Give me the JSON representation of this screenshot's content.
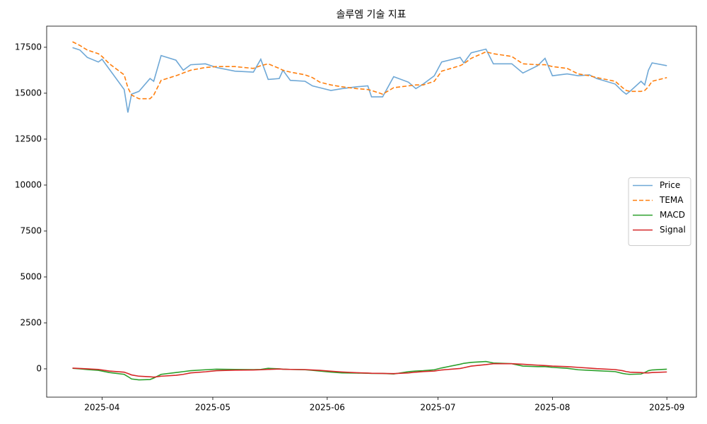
{
  "chart_data": {
    "type": "line",
    "title": "솔루엠 기술 지표",
    "x": [
      "2025-03-24",
      "2025-03-26",
      "2025-03-28",
      "2025-03-31",
      "2025-04-01",
      "2025-04-03",
      "2025-04-07",
      "2025-04-08",
      "2025-04-09",
      "2025-04-11",
      "2025-04-14",
      "2025-04-15",
      "2025-04-17",
      "2025-04-21",
      "2025-04-23",
      "2025-04-25",
      "2025-04-29",
      "2025-05-02",
      "2025-05-07",
      "2025-05-12",
      "2025-05-14",
      "2025-05-16",
      "2025-05-19",
      "2025-05-20",
      "2025-05-22",
      "2025-05-26",
      "2025-05-28",
      "2025-05-30",
      "2025-06-02",
      "2025-06-05",
      "2025-06-09",
      "2025-06-12",
      "2025-06-13",
      "2025-06-16",
      "2025-06-19",
      "2025-06-23",
      "2025-06-25",
      "2025-06-27",
      "2025-06-30",
      "2025-07-02",
      "2025-07-07",
      "2025-07-08",
      "2025-07-10",
      "2025-07-14",
      "2025-07-16",
      "2025-07-21",
      "2025-07-24",
      "2025-07-28",
      "2025-07-30",
      "2025-08-01",
      "2025-08-05",
      "2025-08-08",
      "2025-08-11",
      "2025-08-13",
      "2025-08-18",
      "2025-08-20",
      "2025-08-21",
      "2025-08-22",
      "2025-08-25",
      "2025-08-26",
      "2025-08-27",
      "2025-08-28",
      "2025-09-01"
    ],
    "series": [
      {
        "name": "Price",
        "color": "#6fa8d6",
        "linestyle": "solid",
        "values": [
          17480,
          17350,
          16950,
          16700,
          16850,
          16300,
          15200,
          13950,
          14950,
          15100,
          15800,
          15650,
          17050,
          16800,
          16250,
          16550,
          16600,
          16400,
          16200,
          16150,
          16850,
          15750,
          15800,
          16250,
          15700,
          15650,
          15400,
          15300,
          15150,
          15250,
          15350,
          15400,
          14800,
          14800,
          15900,
          15600,
          15250,
          15500,
          15950,
          16700,
          16950,
          16650,
          17200,
          17400,
          16600,
          16600,
          16100,
          16500,
          16900,
          15950,
          16050,
          15950,
          16000,
          15800,
          15500,
          15100,
          14950,
          15100,
          15650,
          15450,
          16250,
          16650,
          16500
        ]
      },
      {
        "name": "TEMA",
        "color": "#ff7f0e",
        "linestyle": "dashed",
        "values": [
          17800,
          17600,
          17350,
          17150,
          17000,
          16600,
          16000,
          15300,
          14900,
          14700,
          14700,
          14900,
          15700,
          15950,
          16100,
          16250,
          16400,
          16450,
          16450,
          16350,
          16500,
          16600,
          16350,
          16250,
          16150,
          16000,
          15850,
          15600,
          15450,
          15350,
          15250,
          15200,
          15150,
          14950,
          15300,
          15400,
          15450,
          15450,
          15650,
          16200,
          16500,
          16600,
          16900,
          17250,
          17150,
          17000,
          16600,
          16550,
          16550,
          16450,
          16350,
          16050,
          15950,
          15850,
          15650,
          15300,
          15150,
          15100,
          15100,
          15150,
          15350,
          15650,
          15850
        ]
      },
      {
        "name": "MACD",
        "color": "#2ca02c",
        "linestyle": "solid",
        "values": [
          30,
          0,
          -40,
          -80,
          -120,
          -200,
          -300,
          -420,
          -550,
          -600,
          -580,
          -500,
          -300,
          -200,
          -150,
          -100,
          -50,
          -20,
          -30,
          -40,
          -30,
          30,
          0,
          -20,
          -30,
          -50,
          -80,
          -120,
          -180,
          -220,
          -230,
          -240,
          -250,
          -250,
          -280,
          -150,
          -120,
          -100,
          -50,
          50,
          250,
          300,
          350,
          400,
          320,
          280,
          150,
          120,
          120,
          80,
          30,
          -50,
          -80,
          -100,
          -150,
          -250,
          -280,
          -300,
          -280,
          -200,
          -100,
          -60,
          -20
        ]
      },
      {
        "name": "Signal",
        "color": "#d62728",
        "linestyle": "solid",
        "values": [
          40,
          20,
          0,
          -30,
          -60,
          -120,
          -180,
          -250,
          -330,
          -400,
          -430,
          -450,
          -400,
          -350,
          -300,
          -220,
          -160,
          -100,
          -70,
          -60,
          -50,
          -30,
          -10,
          -20,
          -30,
          -40,
          -60,
          -80,
          -130,
          -170,
          -210,
          -230,
          -240,
          -250,
          -260,
          -220,
          -180,
          -150,
          -120,
          -60,
          20,
          60,
          150,
          230,
          280,
          280,
          250,
          200,
          180,
          150,
          120,
          80,
          40,
          10,
          -40,
          -100,
          -150,
          -180,
          -200,
          -220,
          -220,
          -200,
          -170
        ]
      }
    ],
    "xlim": [
      "2025-03-17",
      "2025-09-09"
    ],
    "xticks": [
      {
        "value": "2025-04-01",
        "label": "2025-04"
      },
      {
        "value": "2025-05-01",
        "label": "2025-05"
      },
      {
        "value": "2025-06-01",
        "label": "2025-06"
      },
      {
        "value": "2025-07-01",
        "label": "2025-07"
      },
      {
        "value": "2025-08-01",
        "label": "2025-08"
      },
      {
        "value": "2025-09-01",
        "label": "2025-09"
      }
    ],
    "ylim": [
      -1540,
      18650
    ],
    "yticks": [
      0,
      2500,
      5000,
      7500,
      10000,
      12500,
      15000,
      17500
    ],
    "grid": false,
    "legend": "center right"
  }
}
